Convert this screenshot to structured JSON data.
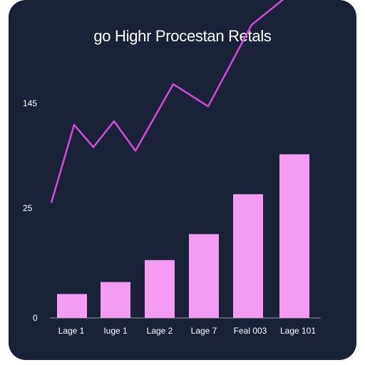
{
  "chart_data": {
    "type": "bar",
    "title": "go Highr Procestan Retals",
    "categories": [
      "Lage 1",
      "Iuge 1",
      "Lage 2",
      "Lage 7",
      "Feal 003",
      "Lage 101"
    ],
    "y_tick_labels": [
      {
        "value": 0,
        "label": "0"
      },
      {
        "value": 25,
        "label": "25"
      },
      {
        "value": 145,
        "label": "145"
      }
    ],
    "bar_values": [
      6,
      9,
      14.5,
      21,
      31,
      41
    ],
    "line_values": [
      28,
      49,
      43,
      50,
      42,
      60,
      54,
      76,
      87
    ],
    "bar_color": "#f49cf4",
    "line_color": "#d34bd9",
    "background": "#1a2238"
  }
}
